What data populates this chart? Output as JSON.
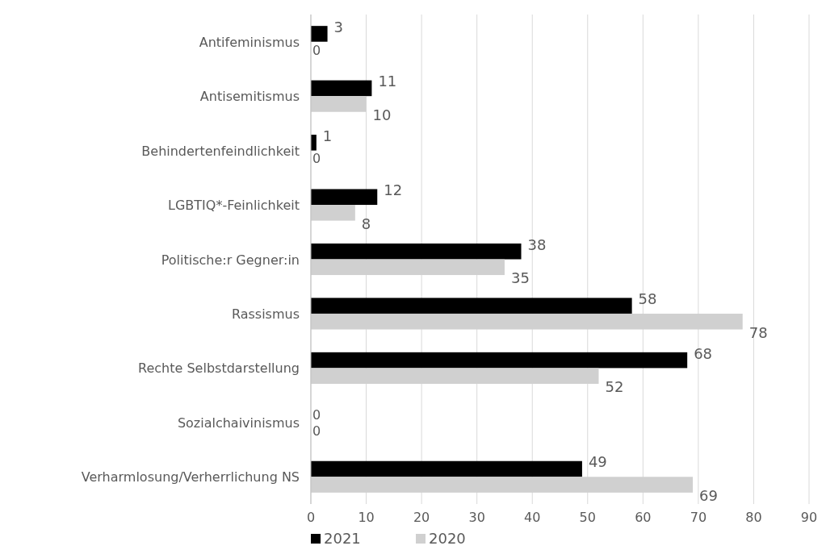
{
  "chart_data": {
    "type": "bar",
    "orientation": "horizontal",
    "categories": [
      "Antifeminismus",
      "Antisemitismus",
      "Behindertenfeindlichkeit",
      "LGBTIQ*-Feinlichkeit",
      "Politische:r Gegner:in",
      "Rassismus",
      "Rechte Selbstdarstellung",
      "Sozialchaivinismus",
      "Verharmlosung/Verherrlichung NS"
    ],
    "series": [
      {
        "name": "2021",
        "color": "#000000",
        "values": [
          3,
          11,
          1,
          12,
          38,
          58,
          68,
          0,
          49
        ]
      },
      {
        "name": "2020",
        "color": "#d0d0d0",
        "values": [
          0,
          10,
          0,
          8,
          35,
          78,
          52,
          0,
          69
        ]
      }
    ],
    "xlim": [
      0,
      90
    ],
    "xticks": [
      0,
      10,
      20,
      30,
      40,
      50,
      60,
      70,
      80,
      90
    ],
    "grid": "x",
    "legend": "bottom",
    "data_labels": true
  }
}
